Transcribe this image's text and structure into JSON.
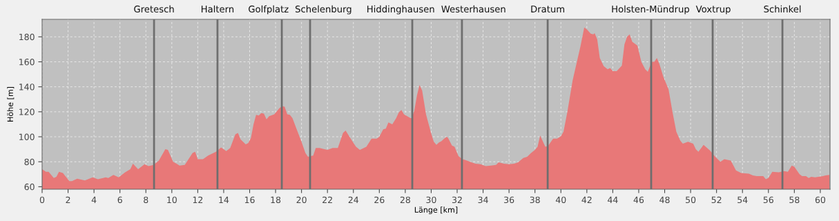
{
  "chart_data": {
    "type": "area",
    "xlabel": "Länge [km]",
    "ylabel": "Höhe [m]",
    "x": [
      0,
      0.3,
      0.5,
      0.9,
      1.1,
      1.3,
      1.6,
      2.1,
      2.3,
      2.7,
      3.3,
      3.9,
      4.3,
      4.7,
      4.9,
      5.1,
      5.5,
      5.9,
      6.4,
      6.8,
      7.0,
      7.4,
      7.9,
      8.2,
      8.6,
      9.0,
      9.5,
      9.7,
      10.1,
      10.6,
      11.0,
      11.6,
      11.8,
      12.0,
      12.4,
      12.8,
      13.4,
      13.8,
      14.2,
      14.5,
      14.9,
      15.1,
      15.3,
      15.7,
      15.9,
      16.1,
      16.3,
      16.5,
      16.7,
      16.9,
      17.1,
      17.3,
      17.5,
      17.9,
      18.3,
      18.5,
      18.7,
      18.9,
      19.1,
      19.3,
      19.7,
      20.0,
      20.3,
      20.5,
      20.7,
      20.9,
      21.1,
      21.4,
      21.6,
      22.0,
      22.4,
      22.8,
      23.2,
      23.4,
      23.7,
      24.2,
      24.5,
      25.0,
      25.4,
      25.8,
      26.0,
      26.3,
      26.5,
      26.7,
      27.0,
      27.3,
      27.5,
      27.7,
      27.9,
      28.4,
      28.5,
      28.7,
      28.9,
      29.1,
      29.3,
      29.6,
      30.0,
      30.2,
      30.4,
      30.6,
      30.8,
      31.0,
      31.2,
      31.3,
      31.6,
      31.8,
      32.1,
      32.4,
      32.6,
      33.0,
      33.4,
      33.8,
      34.2,
      34.6,
      35.0,
      35.2,
      35.6,
      36.0,
      36.4,
      36.7,
      37.1,
      37.4,
      37.7,
      38.0,
      38.2,
      38.4,
      38.8,
      39.0,
      39.4,
      39.7,
      40.0,
      40.2,
      40.5,
      40.9,
      41.3,
      41.5,
      41.8,
      42.0,
      42.3,
      42.5,
      42.6,
      42.8,
      43.0,
      43.3,
      43.6,
      43.8,
      44.0,
      44.3,
      44.7,
      44.9,
      45.1,
      45.3,
      45.5,
      45.9,
      46.2,
      46.5,
      46.7,
      47.0,
      47.2,
      47.4,
      47.6,
      47.9,
      48.3,
      48.6,
      48.9,
      49.2,
      49.4,
      49.8,
      50.2,
      50.4,
      50.6,
      51.0,
      51.5,
      51.9,
      52.3,
      52.6,
      53.1,
      53.5,
      53.9,
      54.5,
      54.8,
      55.1,
      55.6,
      55.8,
      56.0,
      56.3,
      56.8,
      57.2,
      57.5,
      57.8,
      58.0,
      58.4,
      58.6,
      58.9,
      59.1,
      59.3,
      59.6,
      60.2,
      60.4,
      60.7
    ],
    "series": [
      {
        "color": "#e87878",
        "values": [
          74,
          72,
          72,
          67,
          68,
          72,
          71,
          64.5,
          64.5,
          66.5,
          65,
          67.5,
          66,
          67,
          67.5,
          67,
          69.5,
          67.5,
          71.5,
          74,
          78.5,
          74,
          78,
          76.5,
          77.5,
          81,
          90,
          89.5,
          80,
          77,
          77.5,
          87,
          88,
          82,
          82,
          85,
          88,
          91.5,
          88.5,
          91,
          102,
          103,
          98,
          94,
          95,
          99,
          110,
          117.5,
          117,
          119,
          118.5,
          114,
          116.5,
          118,
          123,
          124.5,
          124,
          118,
          117.5,
          115,
          104,
          96,
          87,
          84,
          84.5,
          85,
          91,
          91,
          90.5,
          89.5,
          91,
          91,
          103,
          105,
          100,
          92,
          89.5,
          92,
          98.5,
          98.5,
          100,
          106,
          106.5,
          111.5,
          110,
          115,
          119.5,
          121.5,
          118,
          115,
          115,
          121,
          133,
          141.5,
          137,
          118,
          102.5,
          96,
          93.5,
          95.5,
          96.5,
          98.5,
          100,
          99,
          93,
          92,
          84.5,
          82,
          81.5,
          80,
          78.5,
          78,
          76.5,
          77,
          77.5,
          79.5,
          78.5,
          78,
          78.5,
          79.5,
          83,
          84,
          87,
          89.5,
          92,
          101,
          92,
          92.5,
          98.5,
          98.5,
          100.5,
          104,
          120,
          145,
          163,
          172,
          187.5,
          186,
          182.5,
          182,
          183,
          178,
          163,
          156.5,
          154,
          155,
          152.5,
          152.5,
          157,
          174,
          180,
          182,
          176,
          173,
          160,
          154,
          152,
          160,
          160,
          163,
          158,
          148,
          138,
          120,
          104,
          97,
          94.5,
          96,
          94.5,
          90,
          88,
          93.5,
          89,
          84,
          80,
          82,
          81,
          73,
          71,
          70.5,
          69,
          68.5,
          68.5,
          66,
          67,
          72,
          71.5,
          72.5,
          72,
          77,
          76,
          70,
          68.5,
          68.5,
          67,
          68,
          67.5,
          68.5,
          69,
          69.5
        ]
      }
    ],
    "xlim": [
      0,
      60.75
    ],
    "ylim": [
      58,
      194
    ],
    "xticks": [
      0,
      2,
      4,
      6,
      8,
      10,
      12,
      14,
      16,
      18,
      20,
      22,
      24,
      26,
      28,
      30,
      32,
      34,
      36,
      38,
      40,
      42,
      44,
      46,
      48,
      50,
      52,
      54,
      56,
      58,
      60
    ],
    "yticks": [
      60,
      80,
      100,
      120,
      140,
      160,
      180
    ],
    "grid": true,
    "ref_lines": [
      {
        "axis": "x",
        "value": 8.63,
        "label": "Gretesch",
        "color": "#6e6e6e"
      },
      {
        "axis": "x",
        "value": 13.52,
        "label": "Haltern",
        "color": "#6e6e6e"
      },
      {
        "axis": "x",
        "value": 18.48,
        "label": "Golfplatz",
        "color": "#6e6e6e"
      },
      {
        "axis": "x",
        "value": 20.66,
        "label": "Schelenburg",
        "color": "#6e6e6e"
      },
      {
        "axis": "x",
        "value": 28.54,
        "label": "Hiddinghausen",
        "color": "#6e6e6e"
      },
      {
        "axis": "x",
        "value": 32.37,
        "label": "Westerhausen",
        "color": "#6e6e6e"
      },
      {
        "axis": "x",
        "value": 38.98,
        "label": "Dratum",
        "color": "#6e6e6e"
      },
      {
        "axis": "x",
        "value": 46.96,
        "label": "Holsten-Mündrup",
        "color": "#6e6e6e"
      },
      {
        "axis": "x",
        "value": 51.7,
        "label": "Voxtrup",
        "color": "#6e6e6e"
      },
      {
        "axis": "x",
        "value": 57.08,
        "label": "Schinkel",
        "color": "#6e6e6e"
      }
    ]
  }
}
